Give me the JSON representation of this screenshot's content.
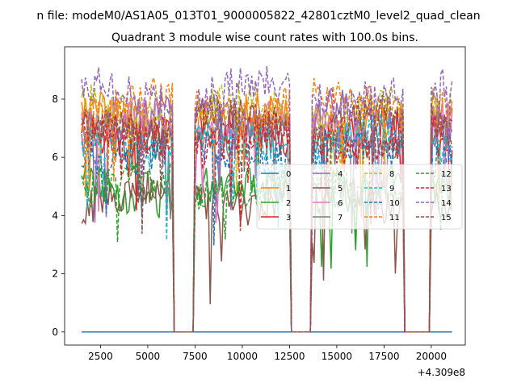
{
  "chart_data": {
    "type": "line",
    "suptitle": "n file: modeM0/AS1A05_013T01_9000005822_42801cztM0_level2_quad_clean",
    "title": "Quadrant 3 module wise count rates with 100.0s bins.",
    "xlabel": "",
    "ylabel": "",
    "x_offset_label": "+4.309e8",
    "xlim": [
      600,
      21800
    ],
    "ylim": [
      -0.45,
      9.8
    ],
    "x_ticks": [
      2500,
      5000,
      7500,
      10000,
      12500,
      15000,
      17500,
      20000
    ],
    "x_tick_labels": [
      "2500",
      "5000",
      "7500",
      "10000",
      "12500",
      "15000",
      "17500",
      "20000"
    ],
    "y_ticks": [
      0,
      2,
      4,
      6,
      8
    ],
    "y_tick_labels": [
      "0",
      "2",
      "4",
      "6",
      "8"
    ],
    "x_start": 1500,
    "x_end": 21100,
    "bin_size": 100,
    "gaps": [
      [
        6400,
        7400
      ],
      [
        12600,
        13600
      ],
      [
        18600,
        19900
      ]
    ],
    "legend_location": "center-right",
    "series": [
      {
        "name": "0",
        "color": "#1f77b4",
        "dash": "solid",
        "level": 0,
        "zero_everywhere": true
      },
      {
        "name": "1",
        "color": "#ff7f0e",
        "dash": "solid",
        "level": 7.3
      },
      {
        "name": "2",
        "color": "#2ca02c",
        "dash": "solid",
        "level": 4.9
      },
      {
        "name": "3",
        "color": "#d62728",
        "dash": "solid",
        "level": 6.9
      },
      {
        "name": "4",
        "color": "#9467bd",
        "dash": "solid",
        "level": 7.4
      },
      {
        "name": "5",
        "color": "#8c564b",
        "dash": "solid",
        "level": 4.6
      },
      {
        "name": "6",
        "color": "#e377c2",
        "dash": "solid",
        "level": 7.1
      },
      {
        "name": "7",
        "color": "#7f7f7f",
        "dash": "solid",
        "level": 6.6
      },
      {
        "name": "8",
        "color": "#bcbd22",
        "dash": "dashed",
        "level": 7.6
      },
      {
        "name": "9",
        "color": "#17becf",
        "dash": "dashed",
        "level": 6.5
      },
      {
        "name": "10",
        "color": "#1f77b4",
        "dash": "dashed",
        "level": 6.2
      },
      {
        "name": "11",
        "color": "#ff7f0e",
        "dash": "dashed",
        "level": 7.8
      },
      {
        "name": "12",
        "color": "#2ca02c",
        "dash": "dashed",
        "level": 5.0
      },
      {
        "name": "13",
        "color": "#d62728",
        "dash": "dashed",
        "level": 6.6
      },
      {
        "name": "14",
        "color": "#9467bd",
        "dash": "dashed",
        "level": 8.2
      },
      {
        "name": "15",
        "color": "#8c564b",
        "dash": "dashed",
        "level": 7.2
      }
    ]
  }
}
